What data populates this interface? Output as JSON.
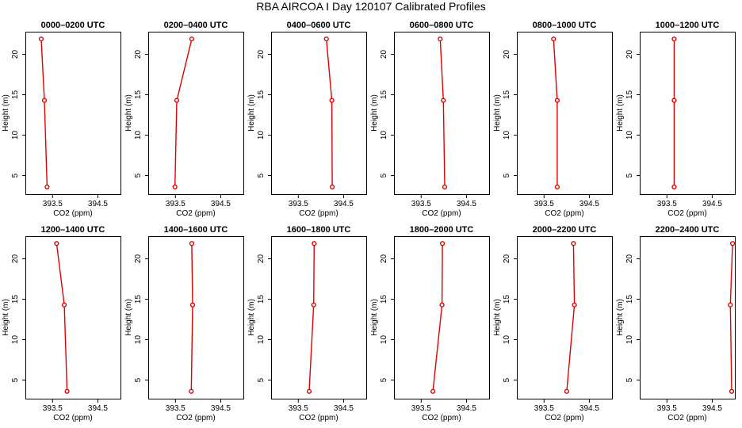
{
  "chart_data": {
    "type": "line",
    "title": "RBA AIRCOA I  Day 120107  Calibrated Profiles",
    "xlabel": "CO2 (ppm)",
    "ylabel": "Height (m)",
    "xlim": [
      392.9,
      395.0
    ],
    "ylim": [
      2.7,
      22.8
    ],
    "xticks": [
      393.5,
      394.5
    ],
    "xtick_labels": [
      "393.5",
      "394.5"
    ],
    "yticks": [
      5,
      10,
      15,
      20
    ],
    "ytick_labels": [
      "5",
      "10",
      "15",
      "20"
    ],
    "heights": [
      3.6,
      14.3,
      21.9
    ],
    "panels": [
      {
        "title": "0000–0200 UTC",
        "x": [
          393.38,
          393.32,
          393.25
        ]
      },
      {
        "title": "0200–0400 UTC",
        "x": [
          393.49,
          393.53,
          393.86
        ]
      },
      {
        "title": "0400–0600 UTC",
        "x": [
          394.25,
          394.24,
          394.12
        ]
      },
      {
        "title": "0600–0800 UTC",
        "x": [
          394.02,
          393.99,
          393.92
        ]
      },
      {
        "title": "0800–1000 UTC",
        "x": [
          393.79,
          393.79,
          393.71
        ]
      },
      {
        "title": "1000–1200 UTC",
        "x": [
          393.66,
          393.66,
          393.66
        ]
      },
      {
        "title": "1200–1400 UTC",
        "x": [
          393.82,
          393.76,
          393.59
        ]
      },
      {
        "title": "1400–1600 UTC",
        "x": [
          393.85,
          393.88,
          393.86
        ]
      },
      {
        "title": "1600–1800 UTC",
        "x": [
          393.74,
          393.84,
          393.85
        ]
      },
      {
        "title": "1800–2000 UTC",
        "x": [
          393.76,
          393.96,
          393.97
        ]
      },
      {
        "title": "2000–2200 UTC",
        "x": [
          394.0,
          394.17,
          394.15
        ]
      },
      {
        "title": "2200–2400 UTC",
        "x": [
          394.93,
          394.9,
          394.95
        ]
      }
    ]
  }
}
